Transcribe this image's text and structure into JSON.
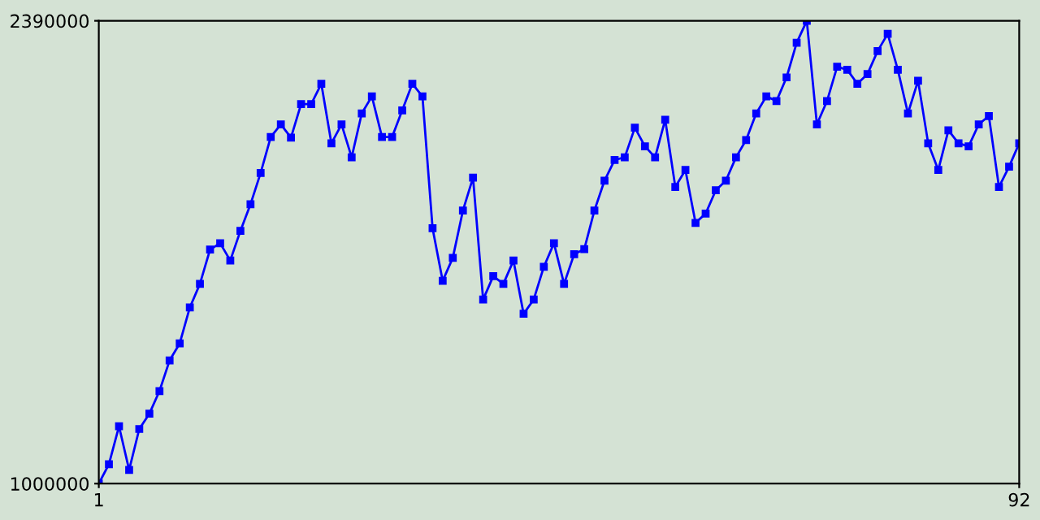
{
  "chart_data": {
    "type": "line",
    "marker": "square",
    "line_style": "solid",
    "grid": false,
    "legend": false,
    "x": [
      1,
      2,
      3,
      4,
      5,
      6,
      7,
      8,
      9,
      10,
      11,
      12,
      13,
      14,
      15,
      16,
      17,
      18,
      19,
      20,
      21,
      22,
      23,
      24,
      25,
      26,
      27,
      28,
      29,
      30,
      31,
      32,
      33,
      34,
      35,
      36,
      37,
      38,
      39,
      40,
      41,
      42,
      43,
      44,
      45,
      46,
      47,
      48,
      49,
      50,
      51,
      52,
      53,
      54,
      55,
      56,
      57,
      58,
      59,
      60,
      61,
      62,
      63,
      64,
      65,
      66,
      67,
      68,
      69,
      70,
      71,
      72,
      73,
      74,
      75,
      76,
      77,
      78,
      79,
      80,
      81,
      82,
      83,
      84,
      85,
      86,
      87,
      88,
      89,
      90,
      91,
      92
    ],
    "series": [
      {
        "color": "#0000ff",
        "values": [
          1000000,
          1058000,
          1172000,
          1041000,
          1164000,
          1210000,
          1278000,
          1370000,
          1421000,
          1529000,
          1600000,
          1703000,
          1722000,
          1670000,
          1759000,
          1839000,
          1933000,
          2041000,
          2079000,
          2039000,
          2140000,
          2140000,
          2201000,
          2022000,
          2079000,
          1980000,
          2112000,
          2163000,
          2041000,
          2041000,
          2121000,
          2201000,
          2163000,
          1767000,
          1609000,
          1678000,
          1820000,
          1919000,
          1553000,
          1623000,
          1600000,
          1670000,
          1510000,
          1553000,
          1651000,
          1722000,
          1600000,
          1689000,
          1704000,
          1820000,
          1910000,
          1972000,
          1980000,
          2069000,
          2013000,
          1980000,
          2093000,
          1891000,
          1942000,
          1783000,
          1811000,
          1881000,
          1910000,
          1980000,
          2032000,
          2112000,
          2163000,
          2149000,
          2220000,
          2324000,
          2390000,
          2079000,
          2149000,
          2252000,
          2243000,
          2201000,
          2230000,
          2299000,
          2351000,
          2243000,
          2112000,
          2210000,
          2022000,
          1942000,
          2061000,
          2022000,
          2013000,
          2079000,
          2104000,
          1891000,
          1952000,
          2022000
        ]
      }
    ],
    "xlim": [
      1,
      92
    ],
    "xticks": [
      1,
      92
    ],
    "ylim": [
      1000000,
      2390000
    ],
    "yticks": [
      1000000,
      2390000
    ]
  }
}
